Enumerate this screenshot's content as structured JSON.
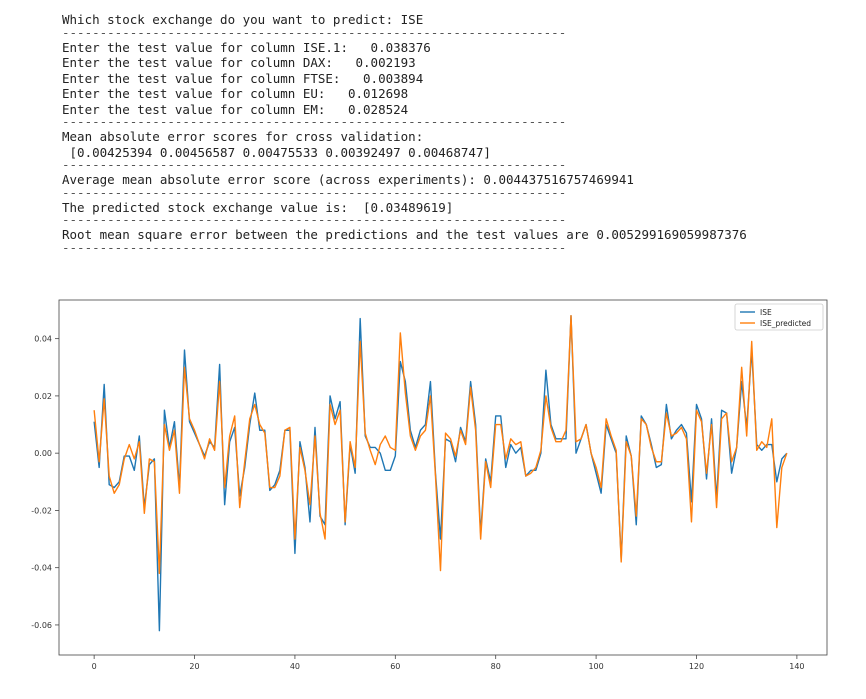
{
  "console": {
    "prompt": "Which stock exchange do you want to predict: ISE",
    "separator": "-------------------------------------------------------------------",
    "inputs": [
      "Enter the test value for column ISE.1:   0.038376",
      "Enter the test value for column DAX:   0.002193",
      "Enter the test value for column FTSE:   0.003894",
      "Enter the test value for column EU:   0.012698",
      "Enter the test value for column EM:   0.028524"
    ],
    "cv_title": "Mean absolute error scores for cross validation:",
    "cv_scores": " [0.00425394 0.00456587 0.00475533 0.00392497 0.00468747]",
    "avg_line": "Average mean absolute error score (across experiments): 0.004437516757469941",
    "pred_line": "The predicted stock exchange value is:  [0.03489619]",
    "rmse_line": "Root mean square error between the predictions and the test values are 0.005299169059987376"
  },
  "chart_data": {
    "type": "line",
    "xlim": [
      -7,
      146
    ],
    "ylim": [
      -0.0705,
      0.0535
    ],
    "xticks": [
      0,
      20,
      40,
      60,
      80,
      100,
      120,
      140
    ],
    "xtick_labels": [
      "0",
      "20",
      "40",
      "60",
      "80",
      "100",
      "120",
      "140"
    ],
    "yticks": [
      -0.06,
      -0.04,
      -0.02,
      0.0,
      0.02,
      0.04
    ],
    "ytick_labels": [
      "-0.06",
      "-0.04",
      "-0.02",
      "0.00",
      "0.02",
      "0.04"
    ],
    "legend": "top-right",
    "grid": false,
    "series": [
      {
        "name": "ISE",
        "color": "#1f77b4",
        "values": [
          0.011,
          -0.005,
          0.024,
          -0.011,
          -0.012,
          -0.01,
          -0.001,
          -0.001,
          -0.006,
          0.006,
          -0.019,
          -0.004,
          -0.002,
          -0.062,
          0.015,
          0.002,
          0.011,
          -0.012,
          0.036,
          0.011,
          0.007,
          0.003,
          -0.001,
          0.004,
          0.002,
          0.031,
          -0.018,
          0.004,
          0.009,
          -0.015,
          -0.005,
          0.01,
          0.021,
          0.008,
          0.008,
          -0.013,
          -0.011,
          -0.006,
          0.008,
          0.008,
          -0.035,
          0.004,
          -0.005,
          -0.024,
          0.009,
          -0.022,
          -0.025,
          0.02,
          0.012,
          0.018,
          -0.025,
          0.003,
          -0.007,
          0.047,
          0.006,
          0.002,
          0.002,
          0.0,
          -0.006,
          -0.006,
          -0.001,
          0.032,
          0.025,
          0.008,
          0.002,
          0.008,
          0.01,
          0.025,
          -0.007,
          -0.03,
          0.005,
          0.004,
          -0.003,
          0.009,
          0.004,
          0.025,
          0.01,
          -0.028,
          -0.002,
          -0.01,
          0.013,
          0.013,
          -0.005,
          0.003,
          0.0,
          0.002,
          -0.008,
          -0.006,
          -0.006,
          0.0,
          0.029,
          0.01,
          0.005,
          0.005,
          0.005,
          0.048,
          0.0,
          0.005,
          0.01,
          0.0,
          -0.007,
          -0.014,
          0.01,
          0.005,
          0.0,
          -0.037,
          0.006,
          -0.001,
          -0.025,
          0.013,
          0.01,
          0.003,
          -0.005,
          -0.004,
          0.017,
          0.005,
          0.008,
          0.01,
          0.007,
          -0.017,
          0.017,
          0.012,
          -0.009,
          0.012,
          -0.016,
          0.015,
          0.014,
          -0.007,
          0.002,
          0.025,
          0.009,
          0.036,
          0.003,
          0.001,
          0.003,
          0.003,
          -0.01,
          -0.002,
          0.0
        ],
        "_note_ignore": ""
      },
      {
        "name": "ISE_predicted",
        "color": "#ff7f0e",
        "values": [
          0.015,
          -0.003,
          0.019,
          -0.008,
          -0.014,
          -0.011,
          -0.002,
          0.003,
          -0.002,
          0.004,
          -0.021,
          -0.002,
          -0.003,
          -0.042,
          0.01,
          0.001,
          0.008,
          -0.014,
          0.03,
          0.012,
          0.008,
          0.003,
          -0.002,
          0.005,
          0.001,
          0.025,
          -0.012,
          0.006,
          0.013,
          -0.019,
          -0.003,
          0.012,
          0.017,
          0.01,
          0.007,
          -0.012,
          -0.012,
          -0.008,
          0.008,
          0.009,
          -0.03,
          0.002,
          -0.006,
          -0.018,
          0.006,
          -0.021,
          -0.03,
          0.017,
          0.01,
          0.015,
          -0.024,
          0.004,
          -0.005,
          0.039,
          0.007,
          0.001,
          -0.004,
          0.003,
          0.006,
          0.002,
          0.001,
          0.042,
          0.021,
          0.006,
          0.001,
          0.006,
          0.008,
          0.02,
          -0.008,
          -0.041,
          0.007,
          0.005,
          -0.001,
          0.008,
          0.003,
          0.023,
          0.008,
          -0.03,
          -0.003,
          -0.012,
          0.01,
          0.01,
          -0.002,
          0.005,
          0.003,
          0.004,
          -0.008,
          -0.007,
          -0.005,
          0.001,
          0.02,
          0.009,
          0.004,
          0.004,
          0.008,
          0.048,
          0.004,
          0.005,
          0.01,
          0.0,
          -0.005,
          -0.012,
          0.012,
          0.006,
          0.001,
          -0.038,
          0.004,
          -0.001,
          -0.022,
          0.012,
          0.01,
          0.002,
          -0.003,
          -0.003,
          0.014,
          0.006,
          0.007,
          0.009,
          0.005,
          -0.024,
          0.015,
          0.011,
          -0.007,
          0.01,
          -0.019,
          0.012,
          0.014,
          -0.003,
          0.002,
          0.03,
          0.006,
          0.039,
          0.001,
          0.004,
          0.002,
          0.012,
          -0.026,
          -0.005,
          0.0
        ]
      }
    ]
  }
}
